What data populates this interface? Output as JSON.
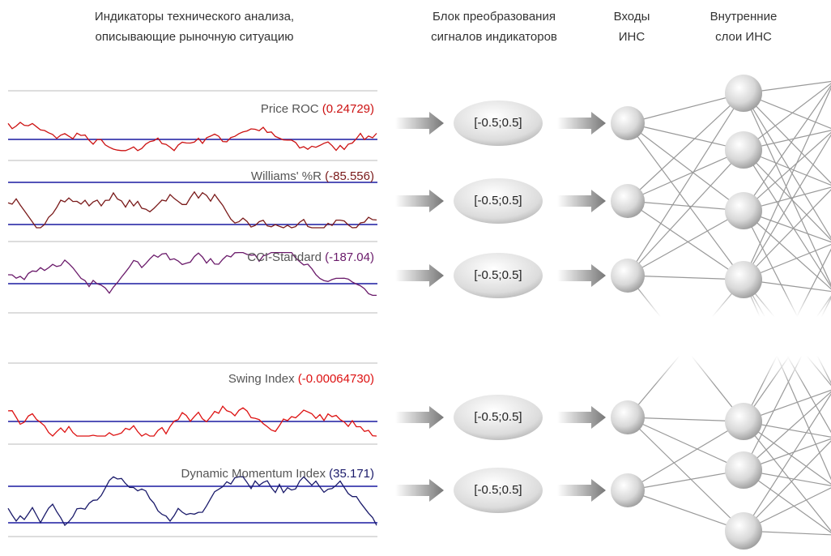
{
  "headers": [
    {
      "lines": [
        "Индикаторы технического анализа,",
        "описывающие рыночную ситуацию"
      ]
    },
    {
      "lines": [
        "Блок преобразования",
        "сигналов индикаторов"
      ]
    },
    {
      "lines": [
        "Входы",
        "ИНС"
      ]
    },
    {
      "lines": [
        "Внутренние",
        "слои ИНС"
      ]
    }
  ],
  "indicators": [
    {
      "name": "Price ROC",
      "value": "(0.24729)",
      "color": "#cc1111"
    },
    {
      "name": "Williams' %R",
      "value": "(-85.556)",
      "color": "#7a1a1a"
    },
    {
      "name": "CCI-Standard",
      "value": "(-187.04)",
      "color": "#6a1a6a"
    },
    {
      "name": "Swing Index",
      "value": "(-0.00064730)",
      "color": "#dd1111"
    },
    {
      "name": "Dynamic Momentum Index",
      "value": "(35.171)",
      "color": "#1a1a6a"
    }
  ],
  "transforms": [
    "[-0.5;0.5]",
    "[-0.5;0.5]",
    "[-0.5;0.5]",
    "[-0.5;0.5]",
    "[-0.5;0.5]"
  ]
}
